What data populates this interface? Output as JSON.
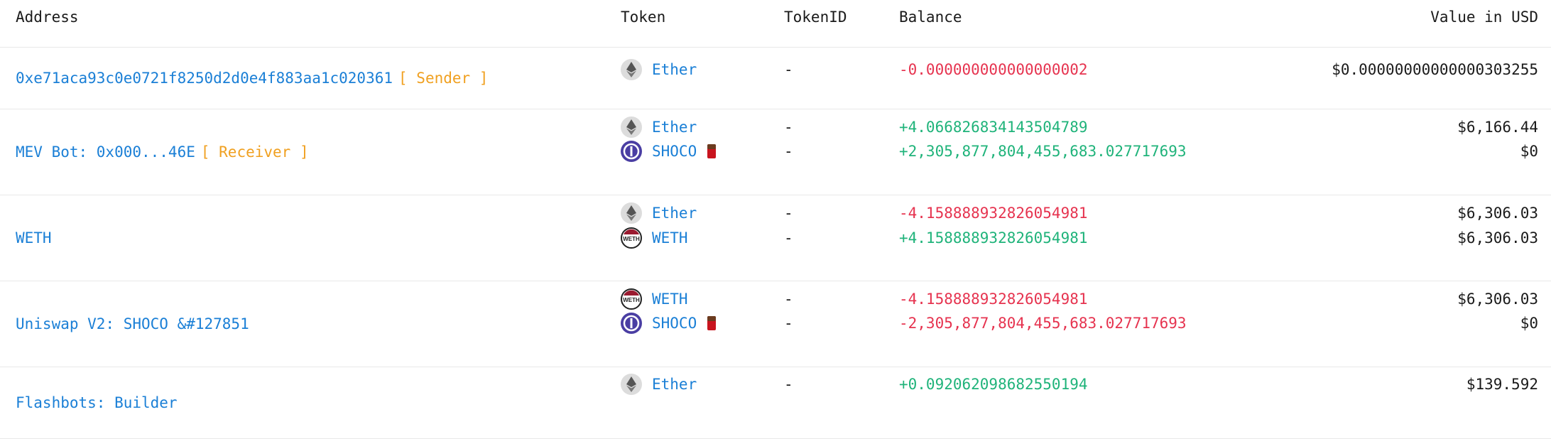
{
  "headers": {
    "address": "Address",
    "token": "Token",
    "token_id": "TokenID",
    "balance": "Balance",
    "value_usd": "Value in USD"
  },
  "rows": [
    {
      "address": "0xe71aca93c0e0721f8250d2d0e4f883aa1c020361",
      "role": "[ Sender ]",
      "tokens": [
        {
          "icon": "ether-icon",
          "name": "Ether",
          "token_id": "-",
          "balance": "-0.000000000000000002",
          "sign": "neg",
          "usd": "$0.00000000000000303255"
        }
      ]
    },
    {
      "address": "MEV Bot: 0x000...46E",
      "role": "[ Receiver ]",
      "tokens": [
        {
          "icon": "ether-icon",
          "name": "Ether",
          "token_id": "-",
          "balance": "+4.066826834143504789",
          "sign": "pos",
          "usd": "$6,166.44"
        },
        {
          "icon": "shoco-token-icon",
          "name": "SHOCO",
          "token_id": "-",
          "balance": "+2,305,877,804,455,683.027717693",
          "sign": "pos",
          "usd": "$0"
        }
      ]
    },
    {
      "address": "WETH",
      "role": "",
      "tokens": [
        {
          "icon": "ether-icon",
          "name": "Ether",
          "token_id": "-",
          "balance": "-4.158888932826054981",
          "sign": "neg",
          "usd": "$6,306.03"
        },
        {
          "icon": "weth-token-icon",
          "name": "WETH",
          "token_id": "-",
          "balance": "+4.158888932826054981",
          "sign": "pos",
          "usd": "$6,306.03"
        }
      ]
    },
    {
      "address": "Uniswap V2: SHOCO &#127851",
      "role": "",
      "tokens": [
        {
          "icon": "weth-token-icon",
          "name": "WETH",
          "token_id": "-",
          "balance": "-4.158888932826054981",
          "sign": "neg",
          "usd": "$6,306.03"
        },
        {
          "icon": "shoco-token-icon",
          "name": "SHOCO",
          "token_id": "-",
          "balance": "-2,305,877,804,455,683.027717693",
          "sign": "neg",
          "usd": "$0"
        }
      ]
    },
    {
      "address": "Flashbots: Builder",
      "role": "",
      "tokens": [
        {
          "icon": "ether-icon",
          "name": "Ether",
          "token_id": "-",
          "balance": "+0.092062098682550194",
          "sign": "pos",
          "usd": "$139.592"
        }
      ]
    }
  ],
  "colors": {
    "link": "#1a7fd6",
    "role": "#f0a020",
    "positive": "#1fb37a",
    "negative": "#e6334f"
  }
}
